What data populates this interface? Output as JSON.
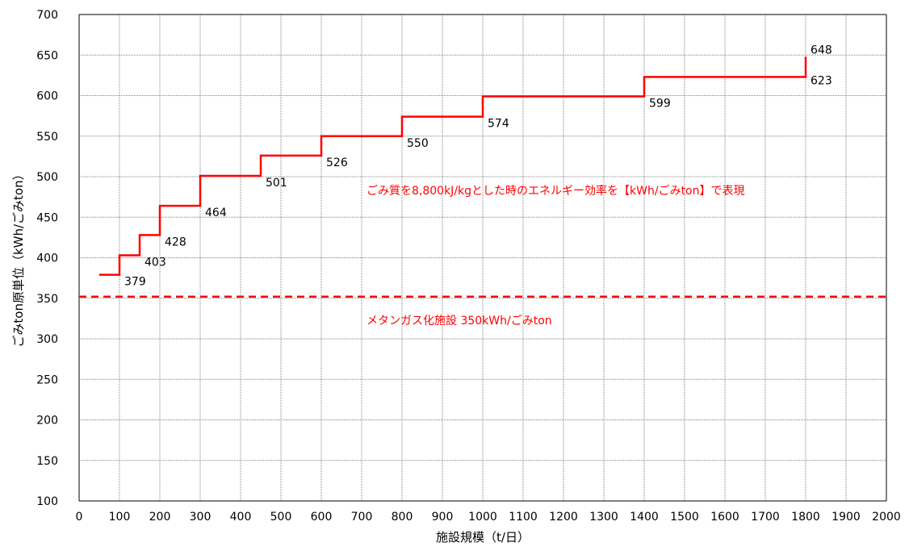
{
  "chart_data": {
    "type": "line",
    "xlabel": "施設規模（t/日）",
    "ylabel": "ごみton原単位（kWh/ごみton）",
    "xlim": [
      0,
      2000
    ],
    "ylim": [
      100,
      700
    ],
    "x_ticks": [
      "0",
      "100",
      "200",
      "300",
      "400",
      "500",
      "600",
      "700",
      "800",
      "900",
      "1000",
      "1100",
      "1200",
      "1300",
      "1400",
      "1500",
      "1600",
      "1700",
      "1800",
      "1900",
      "2000"
    ],
    "y_ticks": [
      "100",
      "150",
      "200",
      "250",
      "300",
      "350",
      "400",
      "450",
      "500",
      "550",
      "600",
      "650",
      "700"
    ],
    "grid": true,
    "series": [
      {
        "style": "step",
        "color": "#ff0000",
        "points": [
          {
            "x": 50,
            "y": 379
          },
          {
            "x": 100,
            "y": 379
          },
          {
            "x": 100,
            "y": 403
          },
          {
            "x": 150,
            "y": 403
          },
          {
            "x": 150,
            "y": 428
          },
          {
            "x": 200,
            "y": 428
          },
          {
            "x": 200,
            "y": 464
          },
          {
            "x": 300,
            "y": 464
          },
          {
            "x": 300,
            "y": 501
          },
          {
            "x": 450,
            "y": 501
          },
          {
            "x": 450,
            "y": 526
          },
          {
            "x": 600,
            "y": 526
          },
          {
            "x": 600,
            "y": 550
          },
          {
            "x": 800,
            "y": 550
          },
          {
            "x": 800,
            "y": 574
          },
          {
            "x": 1000,
            "y": 574
          },
          {
            "x": 1000,
            "y": 599
          },
          {
            "x": 1400,
            "y": 599
          },
          {
            "x": 1400,
            "y": 623
          },
          {
            "x": 1800,
            "y": 623
          },
          {
            "x": 1800,
            "y": 648
          }
        ]
      }
    ],
    "data_labels": [
      {
        "text": "379",
        "x": 100,
        "y": 379
      },
      {
        "text": "403",
        "x": 150,
        "y": 403
      },
      {
        "text": "428",
        "x": 200,
        "y": 428
      },
      {
        "text": "464",
        "x": 300,
        "y": 464
      },
      {
        "text": "501",
        "x": 450,
        "y": 501
      },
      {
        "text": "526",
        "x": 600,
        "y": 526
      },
      {
        "text": "550",
        "x": 800,
        "y": 550
      },
      {
        "text": "574",
        "x": 1000,
        "y": 574
      },
      {
        "text": "599",
        "x": 1400,
        "y": 599
      },
      {
        "text": "623",
        "x": 1800,
        "y": 623
      },
      {
        "text": "648",
        "x": 1800,
        "y": 648
      }
    ],
    "reference_line": {
      "y": 352,
      "color": "#ff0000",
      "style": "dashed",
      "label": "メタンガス化施設 350kWh/ごみton"
    },
    "annotation": {
      "text": "ごみ質を8,800kJ/kgとした時のエネルギー効率を【kWh/ごみton】で表現",
      "color": "#ff0000"
    }
  }
}
